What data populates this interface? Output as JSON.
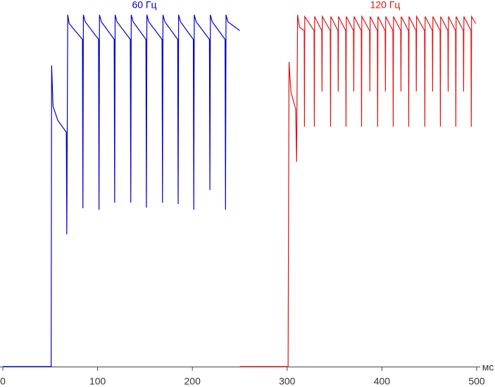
{
  "chart_data": {
    "type": "line",
    "x_label": "мс",
    "xlim": [
      0,
      500
    ],
    "xticks": [
      0,
      100,
      200,
      300,
      400,
      500
    ],
    "ylim": [
      0,
      100
    ],
    "series": [
      {
        "name": "60 Гц",
        "color": "#0000cc",
        "x": [
          0,
          51,
          51.5,
          53,
          58,
          67,
          67.5,
          68.5,
          70,
          84,
          84.5,
          85,
          87,
          101,
          101.5,
          102,
          104,
          117.5,
          118,
          118.5,
          120.5,
          134.5,
          135,
          135.5,
          137.5,
          151,
          151.5,
          152,
          154,
          168,
          168.5,
          169,
          171,
          184.5,
          185,
          185.5,
          187.5,
          201,
          201.5,
          202,
          204,
          218,
          218.5,
          219,
          221,
          234.5,
          235,
          235.5,
          237.5,
          250
        ],
        "values": [
          0,
          0,
          85.6,
          74,
          70,
          66.6,
          37.6,
          100,
          97.5,
          93,
          45,
          100,
          98,
          93,
          44.6,
          100,
          98,
          93,
          46.6,
          100,
          98,
          93,
          46.6,
          100,
          98,
          93,
          45.2,
          100,
          98,
          93,
          46.6,
          100,
          98,
          93,
          46.2,
          100,
          98,
          93,
          44.6,
          100,
          98,
          93,
          50.2,
          100,
          98,
          93,
          44.6,
          100,
          98,
          95.5
        ]
      },
      {
        "name": "120 Гц",
        "color": "#dd1111",
        "x": [
          250,
          301,
          302,
          304,
          309,
          310,
          311,
          313,
          318,
          318.3,
          318.6,
          328.4,
          328.7,
          329,
          336.5,
          336.8,
          337.1,
          345.5,
          345.8,
          346.1,
          353.6,
          353.9,
          354.2,
          361.8,
          362.1,
          362.4,
          370,
          370.3,
          370.6,
          378.2,
          378.5,
          378.8,
          387,
          387.3,
          387.6,
          395.2,
          395.5,
          395.8,
          403.4,
          403.7,
          404,
          411.6,
          411.9,
          412.2,
          419.8,
          420.1,
          420.4,
          428,
          428.3,
          428.6,
          436,
          436.3,
          436.6,
          445,
          445.3,
          445.6,
          453.2,
          453.5,
          453.8,
          461.4,
          461.7,
          462,
          469.6,
          469.9,
          470.2,
          477.7,
          478,
          478.3,
          485.9,
          486.2,
          486.5,
          494,
          494.3,
          494.6,
          499
        ],
        "values": [
          0,
          0,
          86.6,
          78,
          73.2,
          58.2,
          100,
          96.5,
          95.5,
          68.2,
          99.5,
          95.5,
          68.2,
          99.5,
          95.5,
          78.2,
          99.5,
          95.5,
          68.2,
          99.5,
          95.5,
          78.2,
          99.5,
          95.5,
          68.2,
          99.5,
          95.5,
          78.2,
          99.5,
          95.5,
          68.2,
          99.5,
          95.5,
          78.2,
          99.5,
          95.5,
          68.2,
          99.5,
          95.5,
          78.2,
          99.5,
          95.5,
          68.2,
          99.5,
          95.5,
          78.2,
          99.5,
          95.5,
          68.2,
          99.5,
          95.5,
          78.2,
          99.5,
          95.5,
          68.2,
          99.5,
          95.5,
          78.2,
          99.5,
          95.5,
          68.2,
          99.5,
          95.5,
          78.2,
          99.5,
          95.5,
          68.2,
          99.5,
          95.5,
          78.2,
          99.5,
          95.5,
          68.2,
          99.5,
          97.5
        ]
      }
    ]
  }
}
